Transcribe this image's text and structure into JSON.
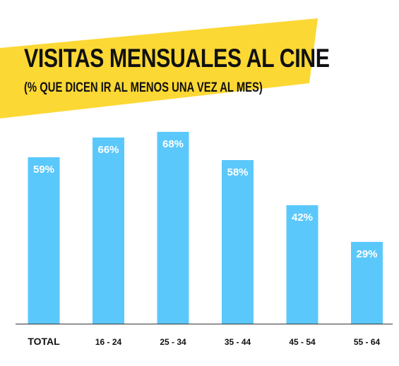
{
  "title": "VISITAS MENSUALES AL CINE",
  "subtitle": "(% QUE DICEN IR AL MENOS UNA VEZ AL MES)",
  "colors": {
    "banner": "#fcd834",
    "bar": "#5bc8fb",
    "axis": "#333333"
  },
  "chart_data": {
    "type": "bar",
    "title": "VISITAS MENSUALES AL CINE",
    "subtitle": "(% QUE DICEN IR AL MENOS UNA VEZ AL MES)",
    "categories": [
      "TOTAL",
      "16 - 24",
      "25 - 34",
      "35 - 44",
      "45 - 54",
      "55 - 64"
    ],
    "values": [
      59,
      66,
      68,
      58,
      42,
      29
    ],
    "data_labels": [
      "59%",
      "66%",
      "68%",
      "58%",
      "42%",
      "29%"
    ],
    "xlabel": "",
    "ylabel": "",
    "ylim": [
      0,
      100
    ],
    "grid": false,
    "legend": "none"
  }
}
